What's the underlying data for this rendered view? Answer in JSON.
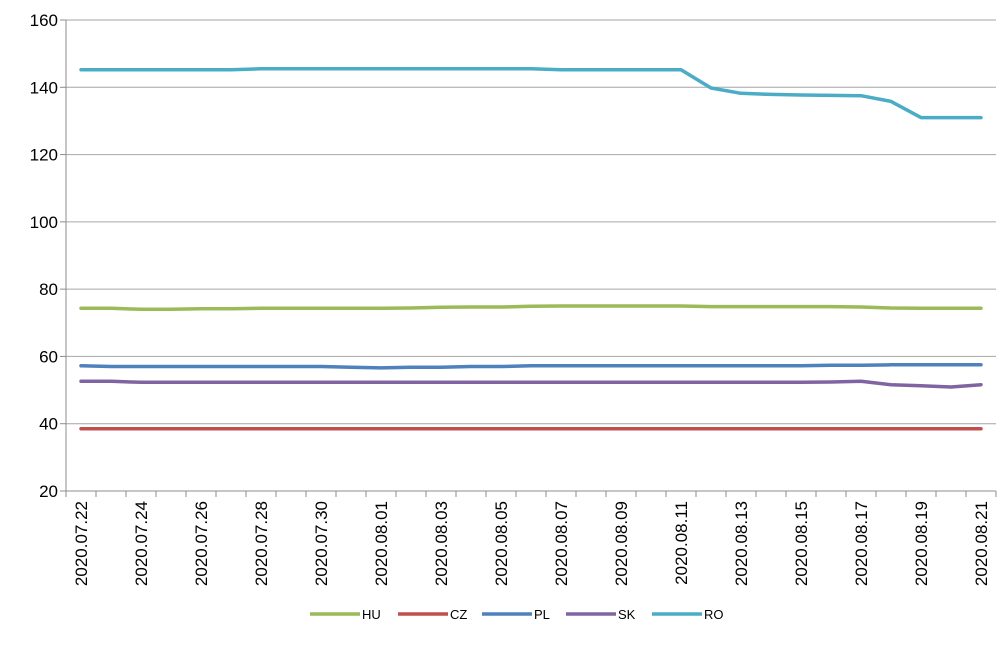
{
  "chart_data": {
    "type": "line",
    "title": "",
    "xlabel": "",
    "ylabel": "",
    "ylim": [
      20,
      160
    ],
    "yticks": [
      20,
      40,
      60,
      80,
      100,
      120,
      140,
      160
    ],
    "grid": "horizontal",
    "legend_position": "bottom",
    "x_tick_labels": [
      "2020.07.22",
      "2020.07.24",
      "2020.07.26",
      "2020.07.28",
      "2020.07.30",
      "2020.08.01",
      "2020.08.03",
      "2020.08.05",
      "2020.08.07",
      "2020.08.09",
      "2020.08.11",
      "2020.08.13",
      "2020.08.15",
      "2020.08.17",
      "2020.08.19",
      "2020.08.21"
    ],
    "x": [
      "2020.07.22",
      "2020.07.23",
      "2020.07.24",
      "2020.07.25",
      "2020.07.26",
      "2020.07.27",
      "2020.07.28",
      "2020.07.29",
      "2020.07.30",
      "2020.07.31",
      "2020.08.01",
      "2020.08.02",
      "2020.08.03",
      "2020.08.04",
      "2020.08.05",
      "2020.08.06",
      "2020.08.07",
      "2020.08.08",
      "2020.08.09",
      "2020.08.10",
      "2020.08.11",
      "2020.08.12",
      "2020.08.13",
      "2020.08.14",
      "2020.08.15",
      "2020.08.16",
      "2020.08.17",
      "2020.08.18",
      "2020.08.19",
      "2020.08.20",
      "2020.08.21"
    ],
    "series": [
      {
        "name": "HU",
        "color": "#9BBB59",
        "values": [
          74.3,
          74.3,
          74.0,
          74.0,
          74.2,
          74.2,
          74.3,
          74.3,
          74.3,
          74.3,
          74.3,
          74.4,
          74.6,
          74.7,
          74.7,
          74.9,
          75.0,
          75.0,
          75.0,
          75.0,
          75.0,
          74.8,
          74.8,
          74.8,
          74.8,
          74.8,
          74.7,
          74.4,
          74.3,
          74.3,
          74.3
        ]
      },
      {
        "name": "CZ",
        "color": "#C0504D",
        "values": [
          38.5,
          38.5,
          38.5,
          38.5,
          38.5,
          38.5,
          38.5,
          38.5,
          38.5,
          38.5,
          38.5,
          38.5,
          38.5,
          38.5,
          38.5,
          38.5,
          38.5,
          38.5,
          38.5,
          38.5,
          38.5,
          38.5,
          38.5,
          38.5,
          38.5,
          38.5,
          38.5,
          38.5,
          38.5,
          38.5,
          38.5
        ]
      },
      {
        "name": "PL",
        "color": "#4F81BD",
        "values": [
          57.2,
          57.0,
          57.0,
          57.0,
          57.0,
          57.0,
          57.0,
          57.0,
          57.0,
          56.8,
          56.6,
          56.8,
          56.8,
          57.0,
          57.0,
          57.2,
          57.2,
          57.2,
          57.2,
          57.2,
          57.2,
          57.2,
          57.2,
          57.2,
          57.2,
          57.4,
          57.4,
          57.5,
          57.5,
          57.5,
          57.5
        ]
      },
      {
        "name": "SK",
        "color": "#8064A2",
        "values": [
          52.6,
          52.6,
          52.3,
          52.3,
          52.3,
          52.3,
          52.3,
          52.3,
          52.3,
          52.3,
          52.3,
          52.3,
          52.3,
          52.3,
          52.3,
          52.3,
          52.3,
          52.3,
          52.3,
          52.3,
          52.3,
          52.3,
          52.3,
          52.3,
          52.3,
          52.4,
          52.6,
          51.6,
          51.3,
          50.9,
          51.6
        ]
      },
      {
        "name": "RO",
        "color": "#4BACC6",
        "values": [
          145.2,
          145.2,
          145.2,
          145.2,
          145.2,
          145.2,
          145.5,
          145.5,
          145.5,
          145.5,
          145.5,
          145.5,
          145.5,
          145.5,
          145.5,
          145.5,
          145.2,
          145.2,
          145.2,
          145.2,
          145.2,
          139.8,
          138.2,
          137.9,
          137.7,
          137.6,
          137.5,
          135.8,
          131.0,
          131.0,
          131.0
        ]
      }
    ]
  }
}
